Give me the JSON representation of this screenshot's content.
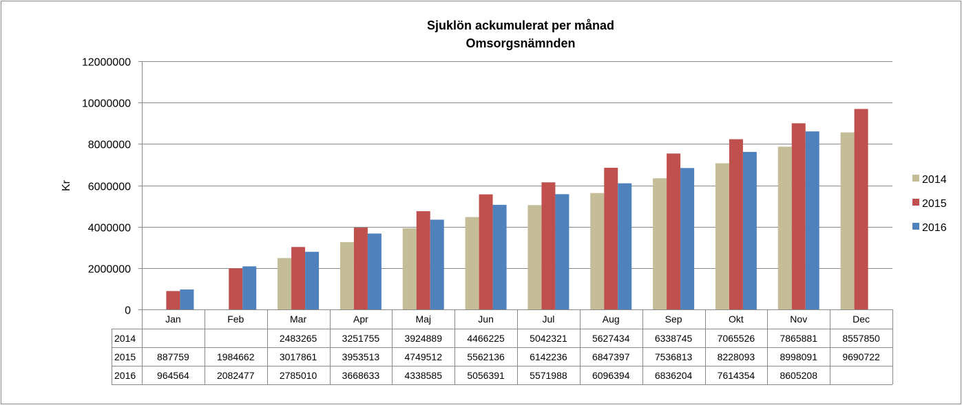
{
  "chart_data": {
    "type": "bar",
    "title": "Sjuklön ackumulerat per månad",
    "subtitle": "Omsorgsnämnden",
    "ylabel": "Kr",
    "xlabel": "",
    "ylim": [
      0,
      12000000
    ],
    "yticks": [
      "0",
      "2000000",
      "4000000",
      "6000000",
      "8000000",
      "10000000",
      "12000000"
    ],
    "ytick_values": [
      0,
      2000000,
      4000000,
      6000000,
      8000000,
      10000000,
      12000000
    ],
    "grid": true,
    "legend_position": "right",
    "categories": [
      "Jan",
      "Feb",
      "Mar",
      "Apr",
      "Maj",
      "Jun",
      "Jul",
      "Aug",
      "Sep",
      "Okt",
      "Nov",
      "Dec"
    ],
    "series": [
      {
        "name": "2014",
        "color": "#C4BD97",
        "values": [
          null,
          null,
          2483265,
          3251755,
          3924889,
          4466225,
          5042321,
          5627434,
          6338745,
          7065526,
          7865881,
          8557850
        ],
        "labels": [
          "",
          "",
          "2483265",
          "3251755",
          "3924889",
          "4466225",
          "5042321",
          "5627434",
          "6338745",
          "7065526",
          "7865881",
          "8557850"
        ]
      },
      {
        "name": "2015",
        "color": "#C0504D",
        "values": [
          887759,
          1984662,
          3017861,
          3953513,
          4749512,
          5562136,
          6142236,
          6847397,
          7536813,
          8228093,
          8998091,
          9690722
        ],
        "labels": [
          "887759",
          "1984662",
          "3017861",
          "3953513",
          "4749512",
          "5562136",
          "6142236",
          "6847397",
          "7536813",
          "8228093",
          "8998091",
          "9690722"
        ]
      },
      {
        "name": "2016",
        "color": "#4F81BD",
        "values": [
          964564,
          2082477,
          2785010,
          3668633,
          4338585,
          5056391,
          5571988,
          6096394,
          6836204,
          7614354,
          8605208,
          null
        ],
        "labels": [
          "964564",
          "2082477",
          "2785010",
          "3668633",
          "4338585",
          "5056391",
          "5571988",
          "6096394",
          "6836204",
          "7614354",
          "8605208",
          ""
        ]
      }
    ]
  }
}
